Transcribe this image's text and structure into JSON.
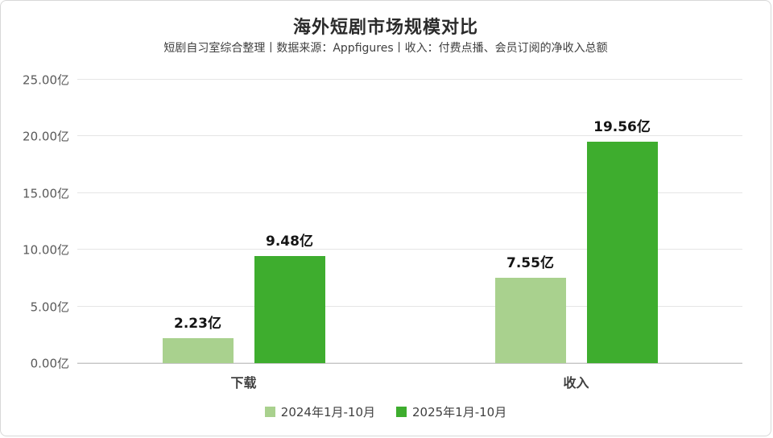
{
  "frame": {
    "border_color": "#d8d8d8"
  },
  "header": {
    "title": "海外短剧市场规模对比",
    "subtitle": "短剧自习室综合整理丨数据来源：Appfigures丨收入：付费点播、会员订阅的净收入总额"
  },
  "chart_data": {
    "type": "bar",
    "title": "海外短剧市场规模对比",
    "categories": [
      "下载",
      "收入"
    ],
    "series": [
      {
        "name": "2024年1月-10月",
        "color": "#a9d18e",
        "values": [
          2.23,
          7.55
        ],
        "labels": [
          "2.23亿",
          "7.55亿"
        ]
      },
      {
        "name": "2025年1月-10月",
        "color": "#3ead2e",
        "values": [
          9.48,
          19.56
        ],
        "labels": [
          "9.48亿",
          "19.56亿"
        ]
      }
    ],
    "y_ticks": [
      "0.00亿",
      "5.00亿",
      "10.00亿",
      "15.00亿",
      "20.00亿",
      "25.00亿"
    ],
    "ylim": [
      0,
      25
    ],
    "unit": "亿",
    "grid": true,
    "legend_position": "bottom",
    "xlabel": "",
    "ylabel": ""
  }
}
